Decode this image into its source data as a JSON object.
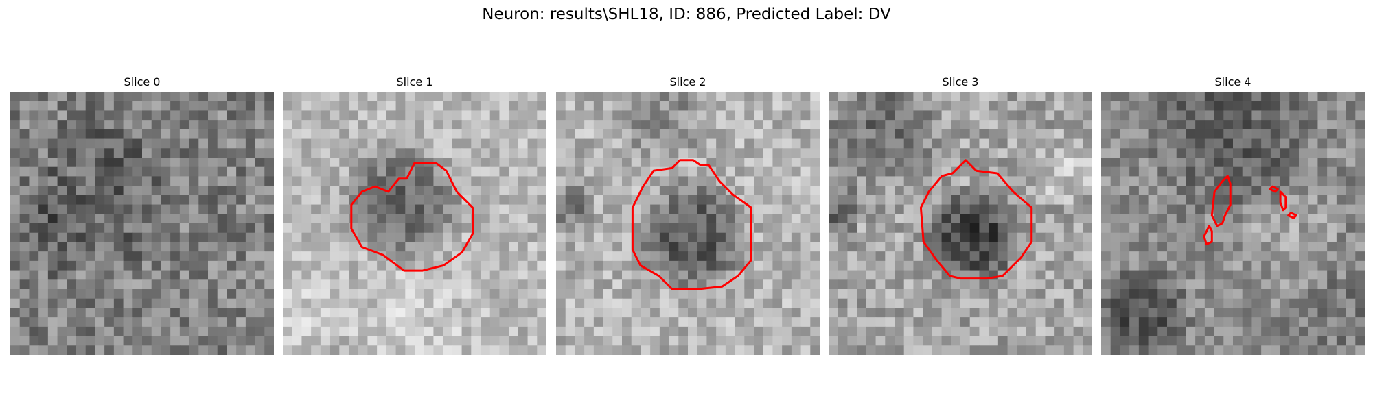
{
  "figure": {
    "title": "Neuron: results\\SHL18, ID: 886, Predicted Label: DV"
  },
  "contour_color": "#ff0000",
  "slices": [
    {
      "title": "Slice 0"
    },
    {
      "title": "Slice 1"
    },
    {
      "title": "Slice 2"
    },
    {
      "title": "Slice 3"
    },
    {
      "title": "Slice 4"
    }
  ]
}
